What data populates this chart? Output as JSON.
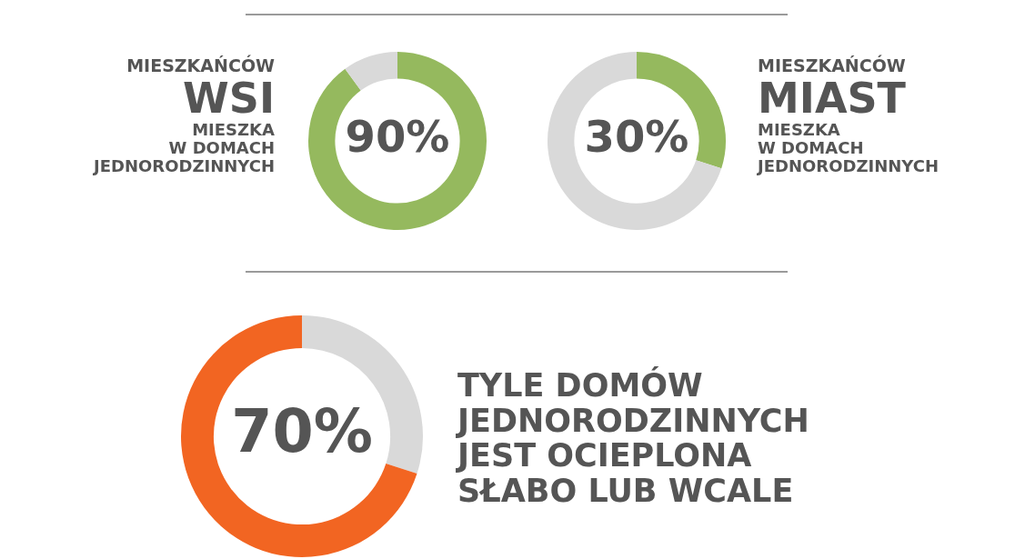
{
  "chart_data": [
    {
      "type": "donut",
      "categories": [
        null,
        null
      ],
      "values": [
        90,
        10
      ],
      "colors": [
        "#95b95e",
        "#d9d9d9"
      ],
      "value_labels": [
        "90%",
        null
      ],
      "legend": false,
      "annotations": [
        "MIESZKAŃCÓW",
        "WSI",
        "MIESZKA\nW DOMACH\nJEDNORODZINNYCH"
      ]
    },
    {
      "type": "donut",
      "categories": [
        null,
        null
      ],
      "values": [
        30,
        70
      ],
      "colors": [
        "#95b95e",
        "#d9d9d9"
      ],
      "value_labels": [
        "30%",
        null
      ],
      "legend": false,
      "annotations": [
        "MIESZKAŃCÓW",
        "MIAST",
        "MIESZKA\nW DOMACH\nJEDNORODZINNYCH"
      ]
    },
    {
      "type": "donut",
      "categories": [
        null,
        null
      ],
      "values": [
        30,
        70
      ],
      "colors": [
        "#d9d9d9",
        "#f26522"
      ],
      "value_labels": [
        null,
        "70%"
      ],
      "legend": false,
      "annotations": [
        "TYLE DOMÓW\nJEDNORODZINNYCH\nJEST OCIEPLONA\nSŁABO LUB WCALE"
      ]
    }
  ]
}
